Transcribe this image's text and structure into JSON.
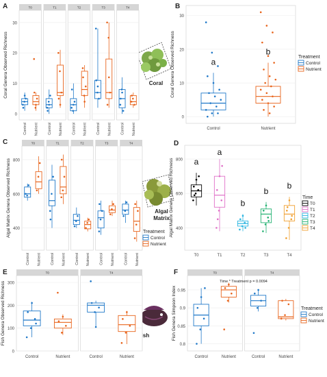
{
  "colors": {
    "control": "#1f78c8",
    "nutrient": "#e8641c",
    "T0": "#000000",
    "T1": "#e070c8",
    "T2": "#28b4e0",
    "T3": "#20b070",
    "T4": "#f0a030",
    "strip": "#d6d6d6",
    "grid": "#ececec",
    "panel_border": "#cfcfcf",
    "coral_green": "#7da84a",
    "fish_body": "#4a2a3a"
  },
  "panel_labels": [
    "A",
    "B",
    "C",
    "D",
    "E",
    "F"
  ],
  "inset_labels": {
    "coral": "Coral",
    "algal": "Algal\nMatrix",
    "fish": "Fish"
  },
  "chart_data": [
    {
      "id": "A",
      "type": "box",
      "ylabel": "Coral Genera Observed Richness",
      "ylim": [
        -2,
        34
      ],
      "yticks": [
        0,
        10,
        20,
        30
      ],
      "facets": [
        "T0",
        "T1",
        "T2",
        "T3",
        "T4"
      ],
      "categories": [
        "Control",
        "Nutrient"
      ],
      "boxes": [
        {
          "facet": "T0",
          "group": "Control",
          "q1": 3,
          "med": 4,
          "q3": 5,
          "lo": 1,
          "hi": 7,
          "pts": [
            3,
            4,
            5,
            2,
            6
          ]
        },
        {
          "facet": "T0",
          "group": "Nutrient",
          "q1": 3,
          "med": 4,
          "q3": 6,
          "lo": 1,
          "hi": 7,
          "pts": [
            18,
            2,
            5,
            7,
            3
          ]
        },
        {
          "facet": "T1",
          "group": "Control",
          "q1": 2,
          "med": 3,
          "q3": 5,
          "lo": 0,
          "hi": 8,
          "pts": [
            2,
            4,
            6,
            1,
            3
          ]
        },
        {
          "facet": "T1",
          "group": "Nutrient",
          "q1": 6,
          "med": 7,
          "q3": 16,
          "lo": 2,
          "hi": 21,
          "pts": [
            20,
            14,
            7,
            5,
            3
          ]
        },
        {
          "facet": "T2",
          "group": "Control",
          "q1": 1,
          "med": 3,
          "q3": 5,
          "lo": 0,
          "hi": 10,
          "pts": [
            2,
            1,
            4,
            8,
            3
          ]
        },
        {
          "facet": "T2",
          "group": "Nutrient",
          "q1": 6,
          "med": 8,
          "q3": 14,
          "lo": 2,
          "hi": 16,
          "pts": [
            15,
            6,
            9,
            12,
            4
          ]
        },
        {
          "facet": "T3",
          "group": "Control",
          "q1": 5,
          "med": 7,
          "q3": 11,
          "lo": 2,
          "hi": 28,
          "pts": [
            28,
            7,
            5,
            11,
            9
          ]
        },
        {
          "facet": "T3",
          "group": "Nutrient",
          "q1": 5,
          "med": 7,
          "q3": 18,
          "lo": 2,
          "hi": 30,
          "pts": [
            30,
            25,
            7,
            3,
            12
          ]
        },
        {
          "facet": "T4",
          "group": "Control",
          "q1": 2,
          "med": 5,
          "q3": 8,
          "lo": 0,
          "hi": 12,
          "pts": [
            3,
            8,
            1,
            5,
            7
          ]
        },
        {
          "facet": "T4",
          "group": "Nutrient",
          "q1": 3,
          "med": 4,
          "q3": 6,
          "lo": 2,
          "hi": 7,
          "pts": [
            4,
            5,
            3,
            6
          ]
        }
      ]
    },
    {
      "id": "B",
      "type": "box",
      "ylabel": "Coral Genera Observed Richness",
      "ylim": [
        -2,
        33
      ],
      "yticks": [
        0,
        10,
        20,
        30
      ],
      "categories": [
        "Control",
        "Nutrient"
      ],
      "letters": [
        "a",
        "b"
      ],
      "legend": {
        "title": "Treatment",
        "items": [
          "Control",
          "Nutrient"
        ]
      },
      "boxes": [
        {
          "group": "Control",
          "q1": 2,
          "med": 4,
          "q3": 7,
          "lo": 0,
          "hi": 13,
          "pts": [
            28,
            19,
            15,
            12,
            10,
            8,
            7,
            6,
            5,
            4,
            3,
            2,
            1,
            1,
            0
          ]
        },
        {
          "group": "Nutrient",
          "q1": 4,
          "med": 6,
          "q3": 9,
          "lo": 0,
          "hi": 16,
          "pts": [
            31,
            27,
            25,
            22,
            18,
            16,
            14,
            12,
            11,
            10,
            9,
            8,
            7,
            6,
            5,
            4,
            3,
            2,
            1
          ]
        }
      ]
    },
    {
      "id": "C",
      "type": "box",
      "ylabel": "Algal Matrix Genera Observed Richness",
      "ylim": [
        270,
        880
      ],
      "yticks": [
        400,
        600,
        800
      ],
      "facets": [
        "T0",
        "T1",
        "T2",
        "T3",
        "T4"
      ],
      "categories": [
        "Control",
        "Nutrient"
      ],
      "legend": {
        "title": "Treatment",
        "items": [
          "Control",
          "Nutrient"
        ]
      },
      "boxes": [
        {
          "facet": "T0",
          "group": "Control",
          "q1": 580,
          "med": 600,
          "q3": 640,
          "lo": 560,
          "hi": 660,
          "pts": [
            600,
            590,
            650
          ]
        },
        {
          "facet": "T0",
          "group": "Nutrient",
          "q1": 630,
          "med": 670,
          "q3": 730,
          "lo": 600,
          "hi": 820,
          "pts": [
            620,
            700,
            780
          ]
        },
        {
          "facet": "T1",
          "group": "Control",
          "q1": 530,
          "med": 560,
          "q3": 680,
          "lo": 400,
          "hi": 770,
          "pts": [
            500,
            600,
            700,
            450
          ]
        },
        {
          "facet": "T1",
          "group": "Nutrient",
          "q1": 600,
          "med": 640,
          "q3": 760,
          "lo": 540,
          "hi": 830,
          "pts": [
            580,
            620,
            700,
            800
          ]
        },
        {
          "facet": "T2",
          "group": "Control",
          "q1": 420,
          "med": 445,
          "q3": 480,
          "lo": 400,
          "hi": 520,
          "pts": [
            410,
            440,
            470
          ]
        },
        {
          "facet": "T2",
          "group": "Nutrient",
          "q1": 395,
          "med": 420,
          "q3": 440,
          "lo": 380,
          "hi": 460,
          "pts": [
            400,
            430,
            450
          ]
        },
        {
          "facet": "T3",
          "group": "Control",
          "q1": 400,
          "med": 460,
          "q3": 500,
          "lo": 360,
          "hi": 560,
          "pts": [
            380,
            450,
            500,
            540
          ]
        },
        {
          "facet": "T3",
          "group": "Nutrient",
          "q1": 490,
          "med": 505,
          "q3": 530,
          "lo": 470,
          "hi": 560,
          "pts": [
            480,
            510,
            540
          ]
        },
        {
          "facet": "T4",
          "group": "Control",
          "q1": 480,
          "med": 505,
          "q3": 540,
          "lo": 430,
          "hi": 560,
          "pts": [
            470,
            500,
            550
          ]
        },
        {
          "facet": "T4",
          "group": "Nutrient",
          "q1": 380,
          "med": 440,
          "q3": 520,
          "lo": 320,
          "hi": 560,
          "pts": [
            340,
            420,
            500,
            540
          ]
        }
      ]
    },
    {
      "id": "D",
      "type": "box",
      "ylabel": "Algal Matrix Genera Observed Richness",
      "ylim": [
        270,
        880
      ],
      "yticks": [
        400,
        600,
        800
      ],
      "categories": [
        "T0",
        "T1",
        "T2",
        "T3",
        "T4"
      ],
      "letters": [
        "a",
        "a",
        "b",
        "b",
        "b"
      ],
      "legend": {
        "title": "Time",
        "items": [
          "T0",
          "T1",
          "T2",
          "T3",
          "T4"
        ]
      },
      "boxes": [
        {
          "group": "T0",
          "q1": 580,
          "med": 615,
          "q3": 650,
          "lo": 530,
          "hi": 720,
          "pts": [
            560,
            600,
            620,
            640,
            680,
            700,
            590
          ]
        },
        {
          "group": "T1",
          "q1": 520,
          "med": 590,
          "q3": 700,
          "lo": 380,
          "hi": 800,
          "pts": [
            400,
            500,
            560,
            620,
            700,
            760,
            450
          ]
        },
        {
          "group": "T2",
          "q1": 410,
          "med": 425,
          "q3": 440,
          "lo": 380,
          "hi": 480,
          "pts": [
            390,
            410,
            430,
            450,
            470,
            400
          ]
        },
        {
          "group": "T3",
          "q1": 430,
          "med": 480,
          "q3": 510,
          "lo": 370,
          "hi": 550,
          "pts": [
            380,
            420,
            460,
            500,
            530,
            440
          ]
        },
        {
          "group": "T4",
          "q1": 440,
          "med": 480,
          "q3": 530,
          "lo": 330,
          "hi": 580,
          "pts": [
            340,
            400,
            450,
            500,
            560,
            470,
            520
          ]
        }
      ]
    },
    {
      "id": "E",
      "type": "box",
      "ylabel": "Fish Genera Observed Richness",
      "ylim": [
        0,
        330
      ],
      "yticks": [
        0,
        100,
        200,
        300
      ],
      "facets": [
        "T0",
        "T4"
      ],
      "facet_titles": [
        "T0",
        "T4"
      ],
      "categories": [
        "Control",
        "Nutrient"
      ],
      "boxes": [
        {
          "facet": "T0",
          "group": "Control",
          "q1": 110,
          "med": 135,
          "q3": 175,
          "lo": 60,
          "hi": 215,
          "pts": [
            60,
            100,
            140,
            170,
            210,
            120
          ]
        },
        {
          "facet": "T0",
          "group": "Nutrient",
          "q1": 100,
          "med": 125,
          "q3": 140,
          "lo": 70,
          "hi": 160,
          "pts": [
            255,
            80,
            110,
            130,
            150
          ]
        },
        {
          "facet": "T4",
          "group": "Control",
          "q1": 170,
          "med": 200,
          "q3": 210,
          "lo": 105,
          "hi": 220,
          "pts": [
            305,
            170,
            190,
            210,
            105
          ]
        },
        {
          "facet": "T4",
          "group": "Nutrient",
          "q1": 85,
          "med": 115,
          "q3": 155,
          "lo": 30,
          "hi": 175,
          "pts": [
            35,
            80,
            110,
            140,
            170
          ]
        }
      ]
    },
    {
      "id": "F",
      "type": "box",
      "ylabel": "Fish Genera Simpson Index",
      "ylim": [
        0.78,
        0.99
      ],
      "yticks": [
        0.8,
        0.85,
        0.9,
        0.95
      ],
      "facets": [
        "T0",
        "T4"
      ],
      "facet_titles": [
        "T0",
        "T4"
      ],
      "categories": [
        "Control",
        "Nutrient"
      ],
      "annotation": "Time * Treatment p = 0.0094",
      "legend": {
        "title": "Treatment",
        "items": [
          "Control",
          "Nutrient"
        ]
      },
      "boxes": [
        {
          "facet": "T0",
          "group": "Control",
          "q1": 0.85,
          "med": 0.88,
          "q3": 0.91,
          "lo": 0.8,
          "hi": 0.955,
          "pts": [
            0.8,
            0.84,
            0.87,
            0.9,
            0.93,
            0.955
          ]
        },
        {
          "facet": "T0",
          "group": "Nutrient",
          "q1": 0.93,
          "med": 0.95,
          "q3": 0.96,
          "lo": 0.915,
          "hi": 0.97,
          "pts": [
            0.84,
            0.92,
            0.94,
            0.955,
            0.965
          ]
        },
        {
          "facet": "T4",
          "group": "Control",
          "q1": 0.905,
          "med": 0.92,
          "q3": 0.935,
          "lo": 0.89,
          "hi": 0.95,
          "pts": [
            0.83,
            0.9,
            0.92,
            0.94,
            0.95
          ]
        },
        {
          "facet": "T4",
          "group": "Nutrient",
          "q1": 0.87,
          "med": 0.875,
          "q3": 0.92,
          "lo": 0.865,
          "hi": 0.925,
          "pts": [
            0.87,
            0.88,
            0.91,
            0.92
          ]
        }
      ]
    }
  ]
}
